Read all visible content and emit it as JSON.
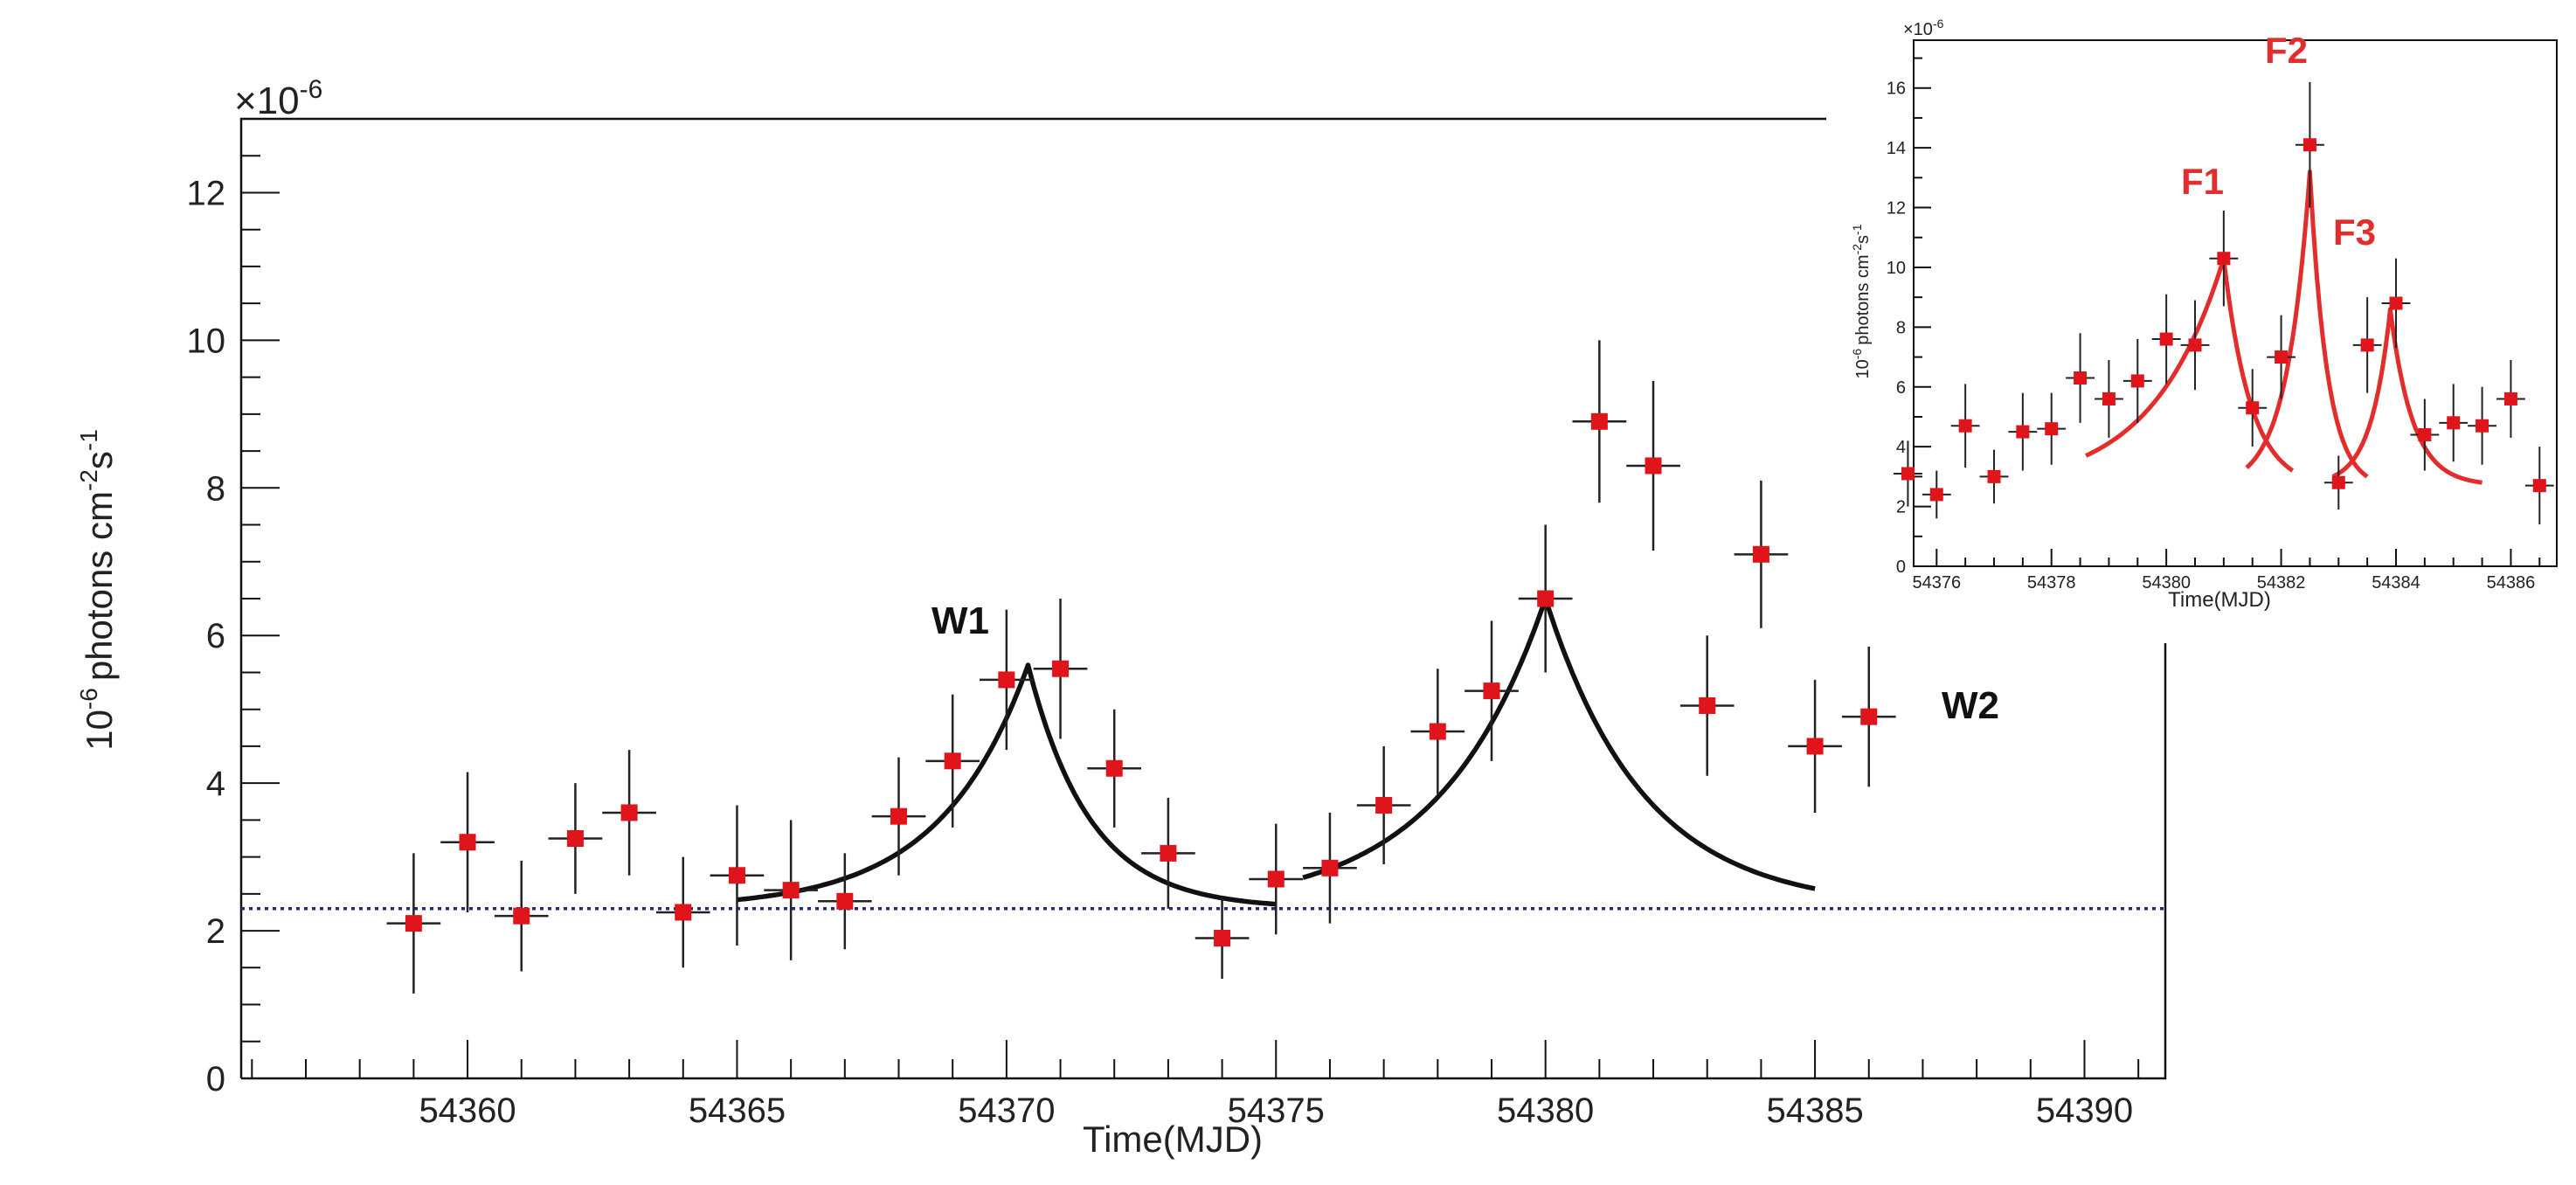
{
  "chart_data": [
    {
      "type": "scatter",
      "title": "",
      "xlabel": "Time(MJD)",
      "ylabel_main": "photons cm",
      "ylabel_prefix": "10",
      "ylabel_prefix_sup": "-6",
      "ylabel_cm_sup": "-2",
      "ylabel_s": "s",
      "ylabel_s_sup": "-1",
      "y_multiplier_base": "×10",
      "y_multiplier_exp": "-6",
      "xlim": [
        54355.8,
        54391.5
      ],
      "ylim": [
        0,
        13.0
      ],
      "x_ticks": [
        54360,
        54365,
        54370,
        54375,
        54380,
        54385,
        54390
      ],
      "x_tick_labels": [
        "54360",
        "54365",
        "54370",
        "54375",
        "54380",
        "54385",
        "54390"
      ],
      "y_ticks": [
        0,
        2,
        4,
        6,
        8,
        10,
        12
      ],
      "y_tick_labels": [
        "0",
        "2",
        "4",
        "6",
        "8",
        "10",
        "12"
      ],
      "baseline": 2.3,
      "series": [
        {
          "name": "flux",
          "x": [
            54359,
            54360,
            54361,
            54362,
            54363,
            54364,
            54365,
            54366,
            54367,
            54368,
            54369,
            54370,
            54371,
            54372,
            54373,
            54374,
            54375,
            54376,
            54377,
            54378,
            54379,
            54380,
            54381,
            54382,
            54383,
            54384,
            54385,
            54386
          ],
          "y": [
            2.1,
            3.2,
            2.2,
            3.25,
            3.6,
            2.25,
            2.75,
            2.55,
            2.4,
            3.55,
            4.3,
            5.4,
            5.55,
            4.2,
            3.05,
            1.9,
            2.7,
            2.85,
            3.7,
            4.7,
            5.25,
            6.5,
            8.9,
            8.3,
            5.05,
            7.1,
            4.5,
            4.9
          ],
          "yerr": [
            0.95,
            0.95,
            0.75,
            0.75,
            0.85,
            0.75,
            0.95,
            0.95,
            0.65,
            0.8,
            0.9,
            0.95,
            0.95,
            0.8,
            0.75,
            0.55,
            0.75,
            0.75,
            0.8,
            0.85,
            0.95,
            1.0,
            1.1,
            1.15,
            0.95,
            1.0,
            0.9,
            0.95
          ],
          "xerr": 0.5
        }
      ],
      "fit_curves": [
        {
          "name": "W1",
          "x_start": 54365,
          "x_peak": 54370.4,
          "x_end": 54375,
          "peak": 5.6,
          "base": 2.3,
          "y_start": 2.42,
          "y_end": 2.36
        },
        {
          "name": "W2",
          "x_start": 54375.5,
          "x_peak": 54380,
          "x_end": 54385,
          "peak": 6.5,
          "base": 2.3,
          "y_start": 2.72,
          "y_end": 2.57
        }
      ],
      "annotations": [
        "W1",
        "W2"
      ]
    },
    {
      "type": "scatter",
      "title": "",
      "xlabel": "Time(MJD)",
      "ylabel_main": "photons cm",
      "ylabel_prefix": "10",
      "ylabel_prefix_sup": "-6",
      "ylabel_cm_sup": "-2",
      "ylabel_s": "s",
      "ylabel_s_sup": "-1",
      "y_multiplier_base": "×10",
      "y_multiplier_exp": "-6",
      "xlim": [
        54375.6,
        54386.8
      ],
      "ylim": [
        0,
        17.6
      ],
      "x_ticks": [
        54376,
        54378,
        54380,
        54382,
        54384,
        54386
      ],
      "x_tick_labels": [
        "54376",
        "54378",
        "54380",
        "54382",
        "54384",
        "54386"
      ],
      "y_ticks": [
        0,
        2,
        4,
        6,
        8,
        10,
        12,
        14,
        16
      ],
      "y_tick_labels": [
        "0",
        "2",
        "4",
        "6",
        "8",
        "10",
        "12",
        "14",
        "16"
      ],
      "series": [
        {
          "name": "flux",
          "x": [
            54375.5,
            54376.0,
            54376.5,
            54377.0,
            54377.5,
            54378.0,
            54378.5,
            54379.0,
            54379.5,
            54380.0,
            54380.5,
            54381.0,
            54381.5,
            54382.0,
            54382.5,
            54383.0,
            54383.5,
            54384.0,
            54384.5,
            54385.0,
            54385.5,
            54386.0,
            54386.5
          ],
          "y": [
            3.1,
            2.4,
            4.7,
            3.0,
            4.5,
            4.6,
            6.3,
            5.6,
            6.2,
            7.6,
            7.4,
            10.3,
            5.3,
            7.0,
            14.1,
            2.8,
            7.4,
            8.8,
            4.4,
            4.8,
            4.7,
            5.6,
            2.7
          ],
          "yerr": [
            1.1,
            0.8,
            1.4,
            0.9,
            1.3,
            1.2,
            1.5,
            1.3,
            1.4,
            1.5,
            1.5,
            1.6,
            1.3,
            1.4,
            2.1,
            0.9,
            1.6,
            1.5,
            1.2,
            1.3,
            1.3,
            1.3,
            1.3
          ],
          "xerr": 0.25
        }
      ],
      "fit_curves": [
        {
          "name": "F1",
          "x_start": 54378.6,
          "x_peak": 54381.0,
          "x_end": 54382.2,
          "peak": 10.3,
          "base": 2.6,
          "y_start": 3.7,
          "y_end": 3.2
        },
        {
          "name": "F2",
          "x_start": 54381.4,
          "x_peak": 54382.5,
          "x_end": 54383.5,
          "peak": 13.2,
          "base": 2.6,
          "y_start": 3.3,
          "y_end": 3.0
        },
        {
          "name": "F3",
          "x_start": 54382.9,
          "x_peak": 54383.9,
          "x_end": 54385.5,
          "peak": 8.6,
          "base": 2.7,
          "y_start": 3.0,
          "y_end": 2.8
        }
      ],
      "annotations": [
        "F1",
        "F2",
        "F3"
      ]
    }
  ]
}
